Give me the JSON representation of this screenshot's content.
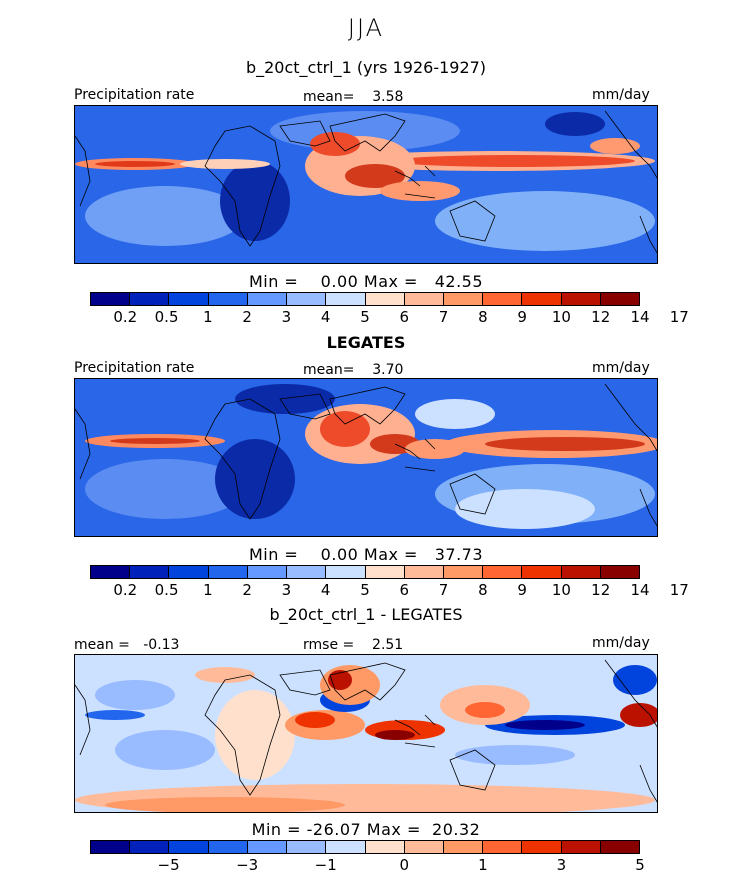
{
  "main_title": "JJA",
  "panels": [
    {
      "title": "b_20ct_ctrl_1 (yrs 1926-1927)",
      "left_label": "Precipitation rate",
      "center_label": "mean=    3.58",
      "right_label": "mm/day",
      "minmax": "Min =    0.00 Max =   42.55"
    },
    {
      "title": "LEGATES",
      "left_label": "Precipitation rate",
      "center_label": "mean=    3.70",
      "right_label": "mm/day",
      "minmax": "Min =    0.00 Max =   37.73"
    },
    {
      "title": "b_20ct_ctrl_1 - LEGATES",
      "left_label": "mean =   -0.13",
      "center_label": "rmse =    2.51",
      "right_label": "mm/day",
      "minmax": "Min = -26.07 Max =  20.32"
    }
  ],
  "colorbar_colors": [
    "#00008b",
    "#0022bb",
    "#0044dd",
    "#2266ee",
    "#6699ff",
    "#99bbff",
    "#cce0ff",
    "#ffe0cc",
    "#ffbb99",
    "#ff9966",
    "#ff6633",
    "#ee3300",
    "#bb1100",
    "#880000"
  ],
  "precip_ticks": [
    "0.2",
    "0.5",
    "1",
    "2",
    "3",
    "4",
    "5",
    "6",
    "7",
    "8",
    "9",
    "10",
    "12",
    "14",
    "17"
  ],
  "diff_ticks": [
    "−5",
    "−3",
    "−1",
    "0",
    "1",
    "3",
    "5"
  ]
}
